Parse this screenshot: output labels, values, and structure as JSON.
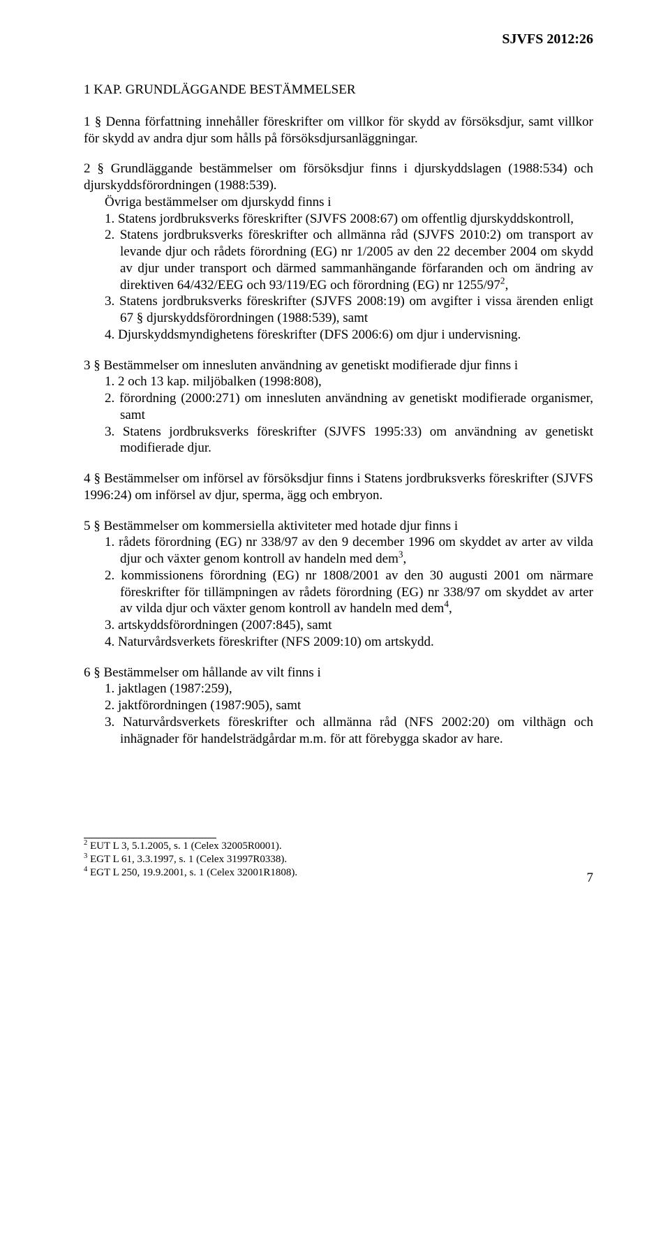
{
  "header": {
    "doc_ref": "SJVFS 2012:26"
  },
  "kap1": {
    "title": "1 KAP. GRUNDLÄGGANDE BESTÄMMELSER",
    "p1": "1 § Denna författning innehåller föreskrifter om villkor för skydd av försöksdjur, samt villkor för skydd av andra djur som hålls på försöksdjursanläggningar.",
    "p2_lead": "2 § Grundläggande bestämmelser om försöksdjur finns i djurskyddslagen (1988:534) och djurskyddsförordningen (1988:539).",
    "p2_sub": "Övriga bestämmelser om djurskydd finns i",
    "p2_list": {
      "i1": "1. Statens jordbruksverks föreskrifter (SJVFS 2008:67) om offentlig djurskyddskontroll,",
      "i2_a": "2. Statens jordbruksverks föreskrifter och allmänna råd (SJVFS 2010:2) om transport av levande djur och rådets förordning (EG) nr 1/2005 av den 22 december 2004 om skydd av djur under transport och därmed sammanhängande förfaranden och om ändring av direktiven 64/432/EEG och 93/119/EG och förordning (EG) nr 1255/97",
      "i2_b": ",",
      "i3": "3. Statens jordbruksverks föreskrifter (SJVFS 2008:19) om avgifter i vissa ärenden enligt 67 § djurskyddsförordningen (1988:539), samt",
      "i4": "4. Djurskyddsmyndighetens föreskrifter (DFS 2006:6) om djur i undervisning."
    },
    "p3_lead": "3 § Bestämmelser om innesluten användning av genetiskt modifierade djur finns i",
    "p3_list": {
      "i1": "1. 2 och 13 kap. miljöbalken (1998:808),",
      "i2": "2. förordning (2000:271) om innesluten användning av genetiskt modifierade organismer, samt",
      "i3": "3. Statens jordbruksverks föreskrifter (SJVFS 1995:33) om användning av genetiskt modifierade djur."
    },
    "p4": "4 § Bestämmelser om införsel av försöksdjur finns i Statens jordbruksverks föreskrifter (SJVFS 1996:24) om införsel av djur, sperma, ägg och embryon.",
    "p5_lead": "5 § Bestämmelser om kommersiella aktiviteter med hotade djur finns i",
    "p5_list": {
      "i1_a": "1. rådets förordning (EG) nr 338/97 av den 9 december 1996 om skyddet av arter av vilda djur och växter genom kontroll av handeln med dem",
      "i1_b": ",",
      "i2_a": "2. kommissionens förordning (EG) nr 1808/2001 av den 30 augusti 2001 om närmare föreskrifter för tillämpningen av rådets förordning (EG) nr 338/97 om skyddet av arter av vilda djur och växter genom kontroll av handeln med dem",
      "i2_b": ",",
      "i3": "3. artskyddsförordningen (2007:845), samt",
      "i4": "4. Naturvårdsverkets föreskrifter (NFS 2009:10) om artskydd."
    },
    "p6_lead": "6 § Bestämmelser om hållande av vilt finns i",
    "p6_list": {
      "i1": "1. jaktlagen (1987:259),",
      "i2": "2. jaktförordningen (1987:905), samt",
      "i3": "3. Naturvårdsverkets föreskrifter och allmänna råd (NFS 2002:20) om vilthägn och inhägnader för handelsträdgårdar m.m. för att förebygga skador av hare."
    }
  },
  "footnotes": {
    "f2_num": "2",
    "f2": " EUT L 3, 5.1.2005, s. 1 (Celex 32005R0001).",
    "f3_num": "3",
    "f3": " EGT L 61, 3.3.1997, s. 1 (Celex 31997R0338).",
    "f4_num": "4",
    "f4": " EGT L 250, 19.9.2001, s. 1 (Celex 32001R1808)."
  },
  "sup": {
    "n2": "2",
    "n3": "3",
    "n4": "4"
  },
  "page_number": "7"
}
